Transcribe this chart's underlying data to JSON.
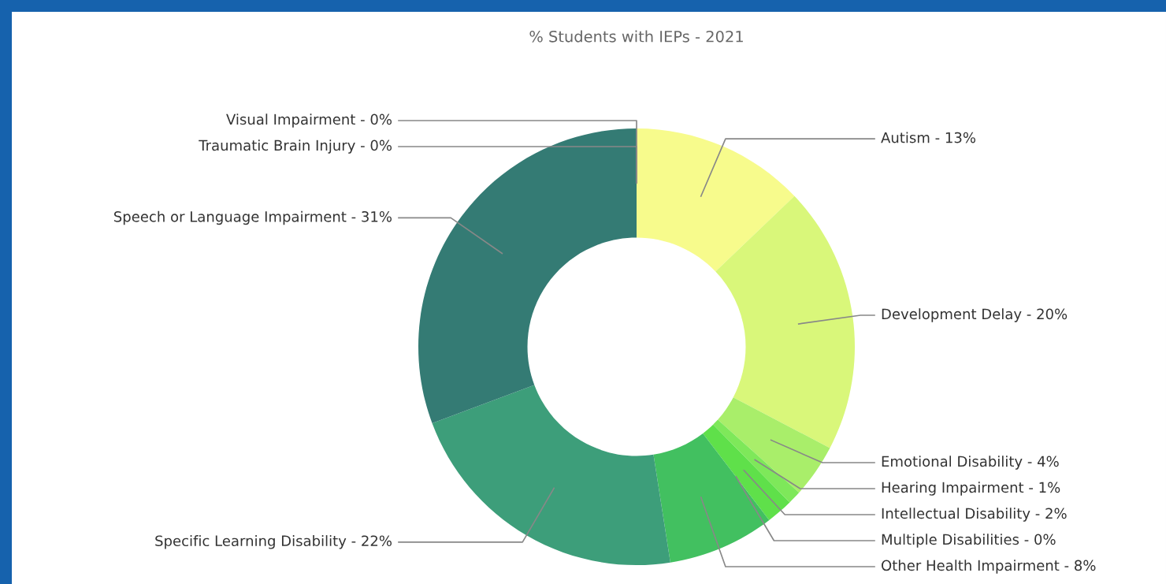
{
  "chart_data": {
    "type": "donut",
    "title": "% Students with IEPs - 2021",
    "categories": [
      "Autism - 13%",
      "Development Delay - 20%",
      "Emotional Disability - 4%",
      "Hearing Impairment - 1%",
      "Intellectual Disability - 2%",
      "Multiple Disabilities - 0%",
      "Other Health Impairment - 8%",
      "Specific Learning Disability - 22%",
      "Speech or Language Impairment - 31%",
      "Traumatic Brain Injury - 0%",
      "Visual Impairment - 0%"
    ],
    "values": [
      13,
      20,
      4,
      1,
      2,
      0,
      8,
      22,
      31,
      0,
      0
    ],
    "colors": [
      "#f7fb8c",
      "#d9f77a",
      "#a9ee6a",
      "#7ee85a",
      "#5fe04a",
      "#4cd24a",
      "#42c060",
      "#3d9e7a",
      "#347b74",
      "#2f5f5f",
      "#333333"
    ]
  }
}
